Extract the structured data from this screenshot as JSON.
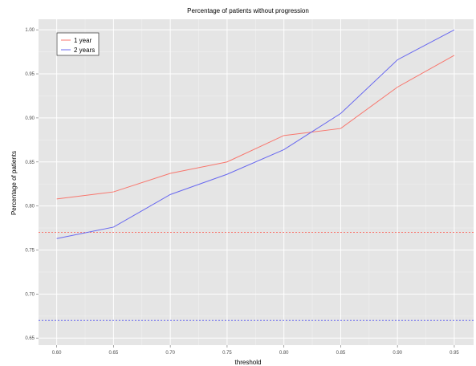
{
  "chart_data": {
    "type": "line",
    "title": "Percentage of patients without progression",
    "xlabel": "threshold",
    "ylabel": "Percentage of patients",
    "x": [
      0.6,
      0.65,
      0.7,
      0.75,
      0.8,
      0.85,
      0.9,
      0.95
    ],
    "x_ticks": [
      "0.60",
      "0.65",
      "0.70",
      "0.75",
      "0.80",
      "0.85",
      "0.90",
      "0.95"
    ],
    "y_ticks": [
      "0.65",
      "0.70",
      "0.75",
      "0.80",
      "0.85",
      "0.90",
      "0.95",
      "1.00"
    ],
    "ylim": [
      0.642,
      1.012
    ],
    "xlim": [
      0.584,
      0.967
    ],
    "grid": true,
    "legend_position": "top-left",
    "series": [
      {
        "name": "1 year",
        "color": "#f8766d",
        "values": [
          0.808,
          0.816,
          0.837,
          0.85,
          0.88,
          0.888,
          0.935,
          0.971
        ],
        "reference_line": 0.77
      },
      {
        "name": "2 years",
        "color": "#6868ef",
        "values": [
          0.763,
          0.776,
          0.813,
          0.836,
          0.864,
          0.905,
          0.966,
          1.0
        ],
        "reference_line": 0.67
      }
    ],
    "reference_lines_style": "dotted"
  }
}
